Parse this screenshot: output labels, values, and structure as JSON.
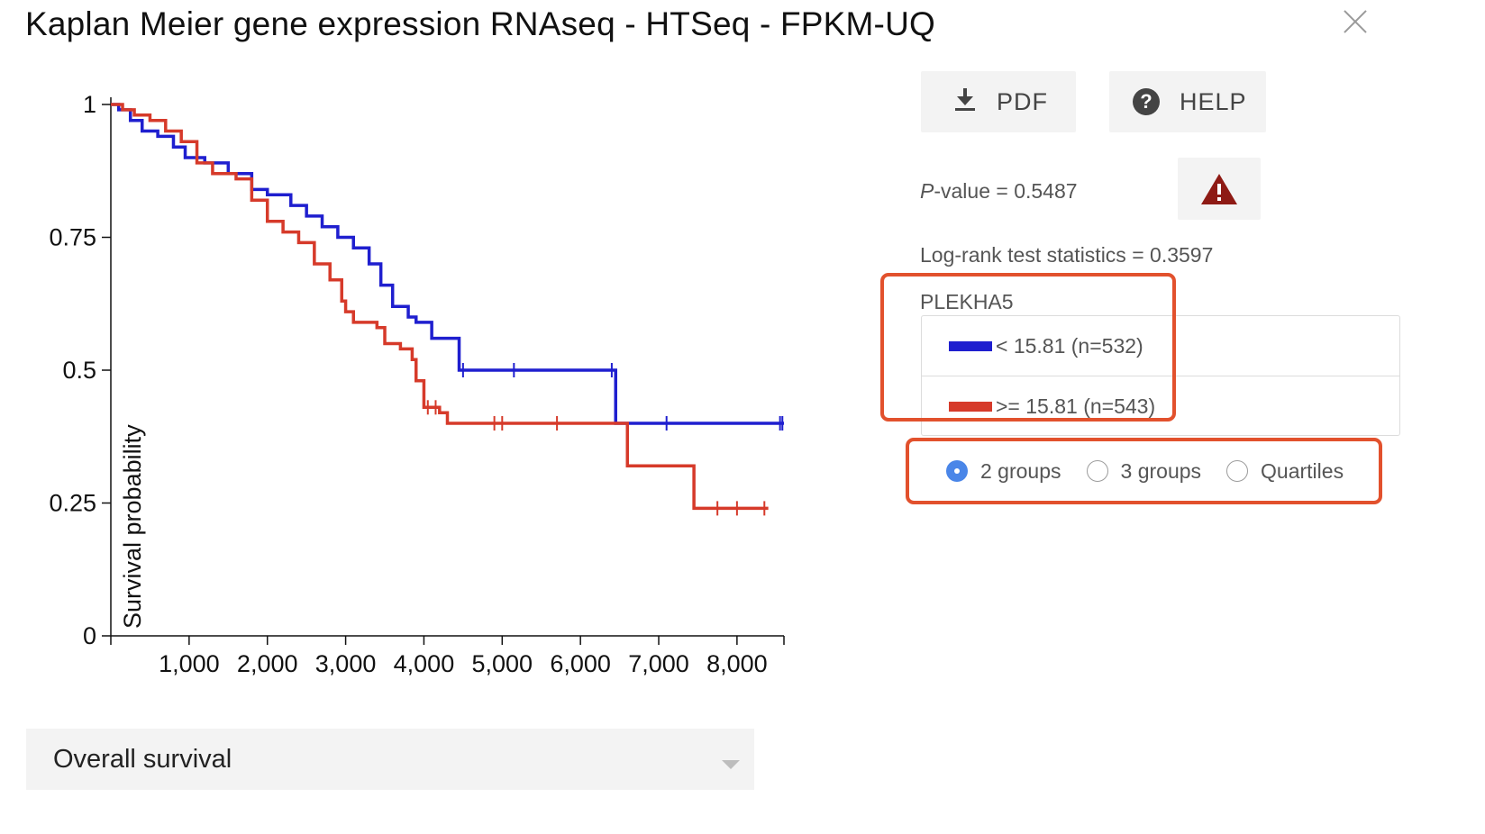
{
  "window": {
    "title": "Kaplan Meier gene expression RNAseq - HTSeq - FPKM-UQ"
  },
  "toolbar": {
    "pdf_label": "PDF",
    "help_label": "HELP"
  },
  "stats": {
    "pvalue_label": "P",
    "pvalue_text": "-value = 0.5487",
    "logrank_text": "Log-rank test statistics = 0.3597"
  },
  "legend": {
    "gene": "PLEKHA5",
    "groups": [
      {
        "label": "< 15.81 (n=532)",
        "color": "#1f1fcf"
      },
      {
        "label": ">= 15.81 (n=543)",
        "color": "#d63a2a"
      }
    ]
  },
  "grouping": {
    "options": [
      "2 groups",
      "3 groups",
      "Quartiles"
    ],
    "selected": "2 groups"
  },
  "survival_select": {
    "value": "Overall survival"
  },
  "chart_data": {
    "type": "line",
    "subtype": "kaplan-meier step",
    "title": "",
    "xlabel": "",
    "ylabel": "Survival probability",
    "xlim": [
      0,
      8600
    ],
    "ylim": [
      0,
      1
    ],
    "x_ticks": [
      1000,
      2000,
      3000,
      4000,
      5000,
      6000,
      7000,
      8000
    ],
    "x_tick_labels": [
      "1,000",
      "2,000",
      "3,000",
      "4,000",
      "5,000",
      "6,000",
      "7,000",
      "8,000"
    ],
    "y_ticks": [
      0,
      0.25,
      0.5,
      0.75,
      1
    ],
    "y_tick_labels": [
      "0",
      "0.25",
      "0.5",
      "0.75",
      "1"
    ],
    "grid": false,
    "series": [
      {
        "name": "< 15.81 (n=532)",
        "color": "#1f1fcf",
        "x": [
          0,
          100,
          250,
          400,
          600,
          800,
          950,
          1200,
          1500,
          1800,
          2000,
          2300,
          2500,
          2700,
          2900,
          3100,
          3300,
          3450,
          3600,
          3800,
          3900,
          4100,
          4450,
          5100,
          6450,
          6550,
          8600
        ],
        "y": [
          1.0,
          0.99,
          0.97,
          0.95,
          0.94,
          0.92,
          0.9,
          0.89,
          0.87,
          0.84,
          0.83,
          0.81,
          0.79,
          0.77,
          0.75,
          0.73,
          0.7,
          0.66,
          0.62,
          0.6,
          0.59,
          0.56,
          0.5,
          0.5,
          0.4,
          0.4,
          0.4
        ]
      },
      {
        "name": ">= 15.81 (n=543)",
        "color": "#d63a2a",
        "x": [
          0,
          150,
          300,
          500,
          700,
          900,
          1100,
          1300,
          1600,
          1800,
          2000,
          2200,
          2400,
          2600,
          2800,
          2950,
          3000,
          3100,
          3400,
          3500,
          3700,
          3850,
          3900,
          4000,
          4200,
          4300,
          5000,
          6000,
          6500,
          6600,
          7200,
          7450,
          7800,
          8100,
          8400
        ],
        "y": [
          1.0,
          0.99,
          0.98,
          0.97,
          0.95,
          0.93,
          0.89,
          0.87,
          0.86,
          0.82,
          0.78,
          0.76,
          0.74,
          0.7,
          0.67,
          0.63,
          0.61,
          0.59,
          0.58,
          0.55,
          0.54,
          0.52,
          0.48,
          0.43,
          0.42,
          0.4,
          0.4,
          0.4,
          0.4,
          0.32,
          0.32,
          0.24,
          0.24,
          0.24,
          0.24
        ]
      }
    ],
    "censor_marks": [
      {
        "series": 0,
        "x": [
          4500,
          5150,
          6400,
          7100,
          8550,
          8580
        ]
      },
      {
        "series": 1,
        "x": [
          4050,
          4150,
          4900,
          5000,
          5700,
          7750,
          8000,
          8350
        ]
      }
    ]
  }
}
